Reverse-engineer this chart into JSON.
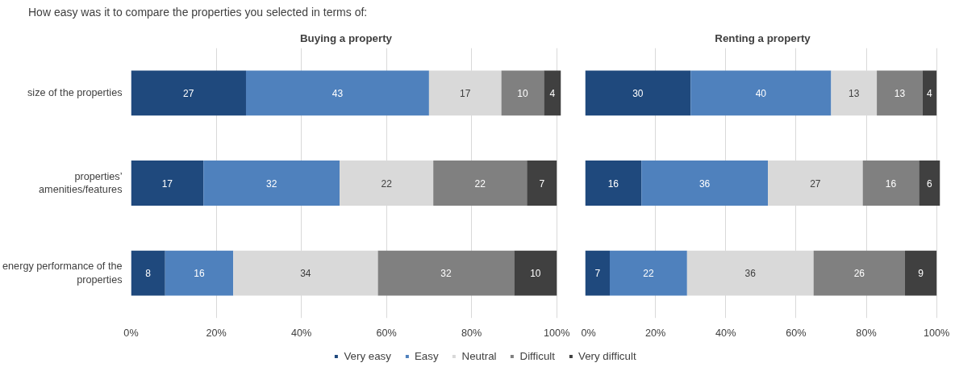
{
  "chart_data": [
    {
      "type": "bar",
      "orientation": "horizontal",
      "stacked": true,
      "title": "Buying a property",
      "annotations": [
        "How easy was it to compare the properties you selected in terms of:"
      ],
      "categories": [
        "size of the properties",
        "properties’ amenities/features",
        "energy performance of the properties"
      ],
      "series": [
        {
          "name": "Very easy",
          "color": "#1f497d",
          "values": [
            27,
            17,
            8
          ]
        },
        {
          "name": "Easy",
          "color": "#4f81bd",
          "values": [
            43,
            32,
            16
          ]
        },
        {
          "name": "Neutral",
          "color": "#d9d9d9",
          "values": [
            17,
            22,
            34
          ]
        },
        {
          "name": "Difficult",
          "color": "#808080",
          "values": [
            10,
            22,
            32
          ]
        },
        {
          "name": "Very difficult",
          "color": "#404040",
          "values": [
            4,
            7,
            10
          ]
        }
      ],
      "xlim": [
        0,
        101
      ],
      "xticks": [
        {
          "value": 0,
          "label": "0%"
        },
        {
          "value": 20,
          "label": "20%"
        },
        {
          "value": 40,
          "label": "40%"
        },
        {
          "value": 60,
          "label": "60%"
        },
        {
          "value": 80,
          "label": "80%"
        },
        {
          "value": 100,
          "label": "100%"
        }
      ],
      "grid": "x",
      "data_labels": true,
      "legend": "bottom"
    },
    {
      "type": "bar",
      "orientation": "horizontal",
      "stacked": true,
      "title": "Renting a property",
      "categories": [
        "size of the properties",
        "properties’ amenities/features",
        "energy performance of the properties"
      ],
      "series": [
        {
          "color": "#1f497d",
          "values": [
            30,
            16,
            7
          ]
        },
        {
          "color": "#4f81bd",
          "values": [
            40,
            36,
            22
          ]
        },
        {
          "color": "#d9d9d9",
          "values": [
            13,
            27,
            36
          ]
        },
        {
          "color": "#808080",
          "values": [
            13,
            16,
            26
          ]
        },
        {
          "color": "#404040",
          "values": [
            4,
            6,
            9
          ]
        }
      ],
      "xlim": [
        0,
        101
      ],
      "xticks": [
        {
          "value": 0,
          "label": "0%"
        },
        {
          "value": 20,
          "label": "20%"
        },
        {
          "value": 40,
          "label": "40%"
        },
        {
          "value": 60,
          "label": "60%"
        },
        {
          "value": 80,
          "label": "80%"
        },
        {
          "value": 100,
          "label": "100%"
        }
      ],
      "grid": "x",
      "data_labels": true,
      "tick_labels": "x"
    }
  ]
}
